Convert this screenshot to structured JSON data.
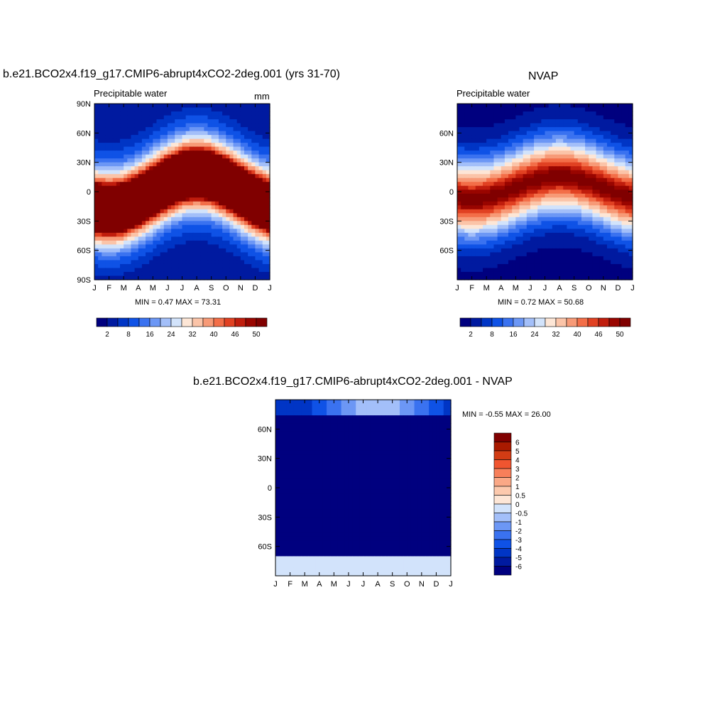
{
  "chart_data": [
    {
      "type": "heatmap",
      "id": "panel-left",
      "title": "b.e21.BCO2x4.f19_g17.CMIP6-abrupt4xCO2-2deg.001 (yrs 31-70)",
      "subtitle": "Precipitable water",
      "units": "mm",
      "x_ticks": [
        "J",
        "F",
        "M",
        "A",
        "M",
        "J",
        "J",
        "A",
        "S",
        "O",
        "N",
        "D",
        "J"
      ],
      "y_ticks": [
        "90N",
        "60N",
        "30N",
        "0",
        "30S",
        "60S",
        "90S"
      ],
      "min_max_text": "MIN =   0.47 MAX =  73.31",
      "colorbar_labels": [
        "2",
        "8",
        "16",
        "24",
        "32",
        "40",
        "46",
        "50"
      ],
      "colorbar_colors": [
        "#00007f",
        "#001aa0",
        "#0035c5",
        "#0f52e6",
        "#3a72f0",
        "#6c97f5",
        "#a3bff9",
        "#d2e3fb",
        "#fde6d6",
        "#fbc4a8",
        "#f79a77",
        "#f36e48",
        "#e14122",
        "#c01d0d",
        "#990500",
        "#800000"
      ],
      "stats": {
        "min": 0.47,
        "max": 73.31
      }
    },
    {
      "type": "heatmap",
      "id": "panel-right",
      "title": "NVAP",
      "subtitle": "Precipitable water",
      "x_ticks": [
        "J",
        "F",
        "M",
        "A",
        "M",
        "J",
        "J",
        "A",
        "S",
        "O",
        "N",
        "D",
        "J"
      ],
      "y_ticks": [
        "60N",
        "30N",
        "0",
        "30S",
        "60S"
      ],
      "min_max_text": "MIN =   0.72 MAX =  50.68",
      "colorbar_labels": [
        "2",
        "8",
        "16",
        "24",
        "32",
        "40",
        "46",
        "50"
      ],
      "colorbar_colors": [
        "#00007f",
        "#001aa0",
        "#0035c5",
        "#0f52e6",
        "#3a72f0",
        "#6c97f5",
        "#a3bff9",
        "#d2e3fb",
        "#fde6d6",
        "#fbc4a8",
        "#f79a77",
        "#f36e48",
        "#e14122",
        "#c01d0d",
        "#990500",
        "#800000"
      ],
      "stats": {
        "min": 0.72,
        "max": 50.68
      }
    },
    {
      "type": "heatmap",
      "id": "panel-diff",
      "title": "b.e21.BCO2x4.f19_g17.CMIP6-abrupt4xCO2-2deg.001 - NVAP",
      "x_ticks": [
        "J",
        "F",
        "M",
        "A",
        "M",
        "J",
        "J",
        "A",
        "S",
        "O",
        "N",
        "D",
        "J"
      ],
      "y_ticks": [
        "60N",
        "30N",
        "0",
        "30S",
        "60S"
      ],
      "min_max_text": "MIN =  -0.55 MAX =  26.00",
      "colorbar_labels": [
        "6",
        "5",
        "4",
        "3",
        "2",
        "1",
        "0.5",
        "0",
        "-0.5",
        "-1",
        "-2",
        "-3",
        "-4",
        "-5",
        "-6"
      ],
      "colorbar_colors": [
        "#800000",
        "#aa1a00",
        "#d23c14",
        "#f05530",
        "#f77f5a",
        "#faa886",
        "#fcc9ad",
        "#fde6d6",
        "#d2e3fb",
        "#a3bff9",
        "#6c97f5",
        "#3a72f0",
        "#0f52e6",
        "#0035c5",
        "#001aa0",
        "#00007f"
      ],
      "stats": {
        "min": -0.55,
        "max": 26.0
      }
    }
  ]
}
